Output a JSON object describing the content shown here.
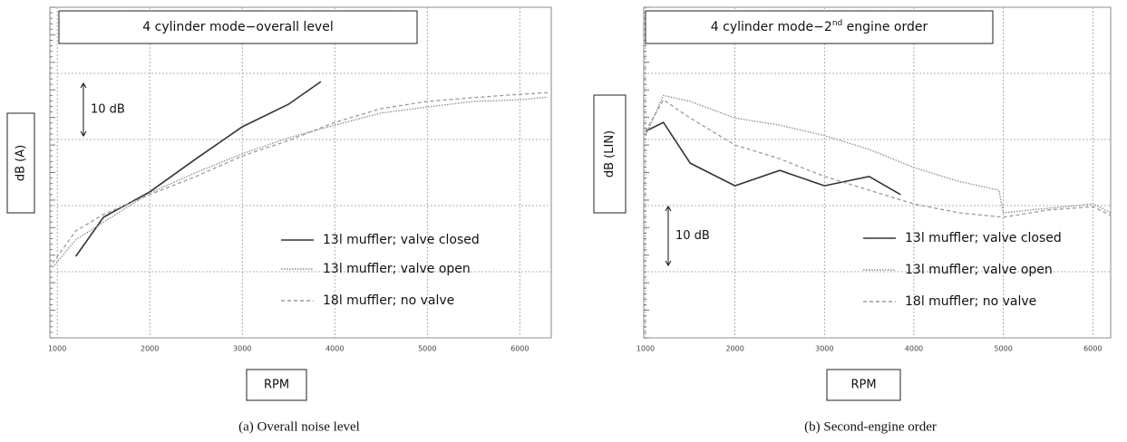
{
  "chart_data": [
    {
      "type": "line",
      "title": [
        "4 cylinder mode−overall level"
      ],
      "annotation": "10 dB",
      "ylabel": "dB (A)",
      "xlabel": "RPM",
      "caption": "(a) Overall noise level",
      "xlim": [
        920,
        6340
      ],
      "xticks": [
        1000,
        2000,
        3000,
        4000,
        5000,
        6000
      ],
      "ylim": [
        0,
        60
      ],
      "yticks": [
        0,
        12,
        24,
        36,
        48,
        60
      ],
      "grid": true,
      "series": [
        {
          "name": "13l muffler; valve closed",
          "color": "#333333",
          "style": "solid",
          "x": [
            1200,
            1500,
            2000,
            2500,
            3000,
            3500,
            3850
          ],
          "values": [
            14.8,
            21.9,
            26.5,
            32.5,
            38.3,
            42.4,
            46.5
          ]
        },
        {
          "name": "13l muffler; valve open",
          "color": "#8a8a8a",
          "style": "dotted",
          "x": [
            950,
            1200,
            1500,
            2000,
            2500,
            3000,
            3500,
            4000,
            4500,
            5000,
            5500,
            6000,
            6300
          ],
          "values": [
            12.8,
            17.8,
            21,
            26.3,
            30,
            33.4,
            36.3,
            38.6,
            40.8,
            41.9,
            42.9,
            43.2,
            43.7
          ]
        },
        {
          "name": "18l muffler; no valve",
          "color": "#9a9a9a",
          "style": "dashed",
          "x": [
            950,
            1200,
            1500,
            2000,
            2500,
            3000,
            3500,
            4000,
            4500,
            5000,
            5500,
            6000,
            6300
          ],
          "values": [
            13.6,
            19.4,
            22.4,
            26,
            29.3,
            33,
            35.8,
            39.1,
            41.6,
            42.9,
            43.6,
            44.2,
            44.5
          ]
        }
      ]
    },
    {
      "type": "line",
      "title": [
        "4 cylinder mode−2",
        "nd",
        " engine order"
      ],
      "annotation": "10 dB",
      "ylabel": "dB (LIN)",
      "xlabel": "RPM",
      "caption": "(b) Second-engine order",
      "xlim": [
        980,
        6200
      ],
      "xticks": [
        1000,
        2000,
        3000,
        4000,
        5000,
        6000
      ],
      "ylim": [
        0,
        60
      ],
      "yticks": [
        0,
        12,
        24,
        36,
        48,
        60
      ],
      "grid": true,
      "series": [
        {
          "name": "13l muffler; valve closed",
          "color": "#333333",
          "style": "solid",
          "x": [
            1000,
            1200,
            1500,
            2000,
            2500,
            3000,
            3500,
            3850
          ],
          "values": [
            37.5,
            39.1,
            31.7,
            27.6,
            30.4,
            27.6,
            29.3,
            26
          ]
        },
        {
          "name": "13l muffler; valve open",
          "color": "#8a8a8a",
          "style": "dotted",
          "x": [
            1000,
            1200,
            1500,
            2000,
            2500,
            3000,
            3500,
            4000,
            4500,
            4950,
            5000,
            5500,
            6000,
            6200
          ],
          "values": [
            36.7,
            44,
            42.9,
            39.9,
            38.6,
            36.7,
            34.2,
            30.9,
            28.4,
            26.8,
            22.7,
            23.5,
            24.3,
            22.7
          ]
        },
        {
          "name": "18l muffler; no valve",
          "color": "#9a9a9a",
          "style": "dashed",
          "x": [
            1000,
            1200,
            1500,
            2000,
            2500,
            3000,
            3500,
            4000,
            4500,
            5000,
            5500,
            6000,
            6200
          ],
          "values": [
            37.5,
            43.2,
            39.9,
            35,
            32.5,
            29.3,
            26.8,
            24.3,
            22.7,
            21.9,
            23.2,
            23.8,
            22.2
          ]
        }
      ]
    }
  ]
}
